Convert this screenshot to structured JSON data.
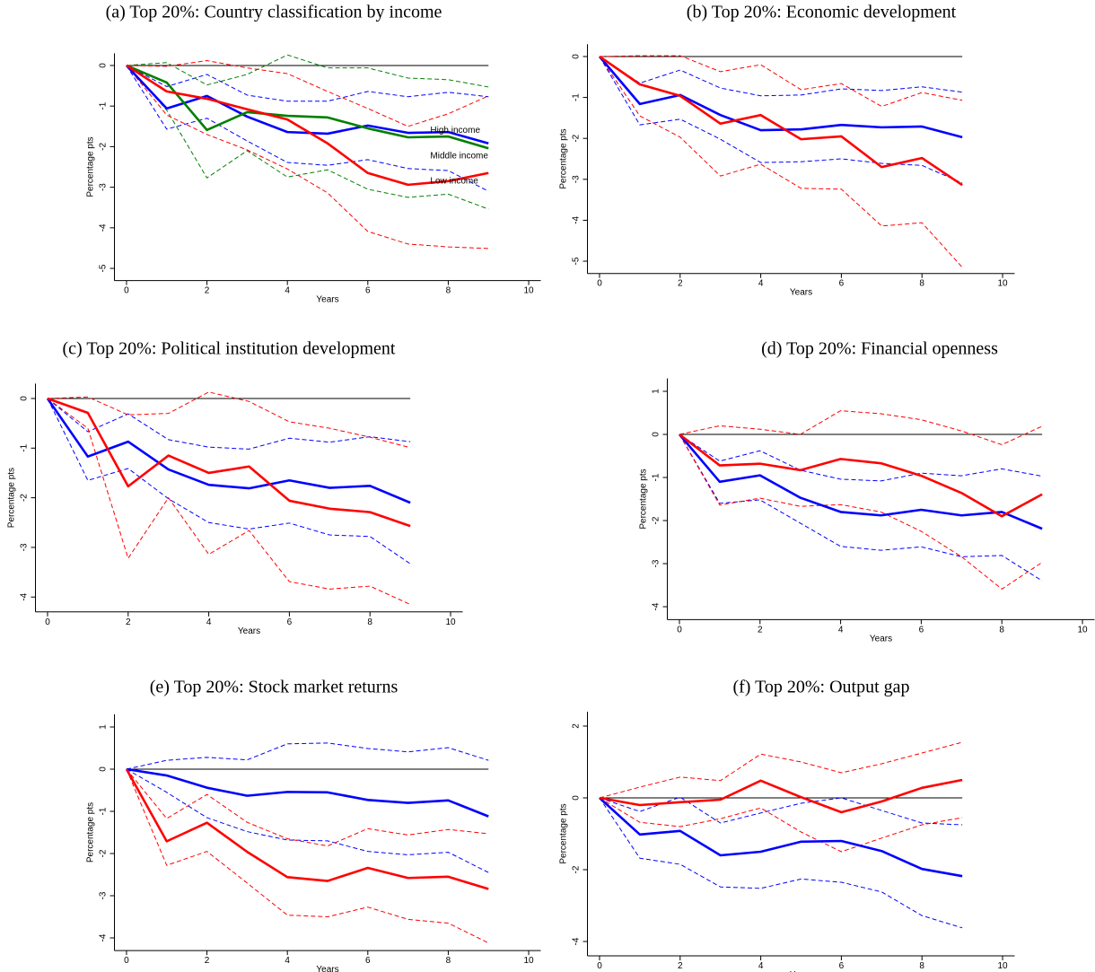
{
  "chart_data": [
    {
      "type": "line",
      "title": "(a) Top 20%: Country classification by income",
      "xlabel": "Years",
      "ylabel": "Percentage pts",
      "x": [
        0,
        1,
        2,
        3,
        4,
        5,
        6,
        7,
        8,
        9
      ],
      "xlim": [
        -0.3,
        10.3
      ],
      "xticks": [
        0,
        2,
        4,
        6,
        8,
        10
      ],
      "ylim": [
        -5.3,
        0.3
      ],
      "yticks": [
        0,
        -1,
        -2,
        -3,
        -4,
        -5
      ],
      "reference_line": 0,
      "series": [
        {
          "color": "#0000ff",
          "style": "dashed",
          "values": [
            0,
            -0.52,
            -0.22,
            -0.73,
            -0.88,
            -0.88,
            -0.64,
            -0.77,
            -0.66,
            -0.77
          ]
        },
        {
          "color": "#0000ff",
          "style": "dashed",
          "values": [
            0,
            -1.57,
            -1.3,
            -1.86,
            -2.39,
            -2.46,
            -2.32,
            -2.54,
            -2.59,
            -3.1
          ]
        },
        {
          "color": "#008000",
          "style": "dashed",
          "values": [
            0,
            0.07,
            -0.48,
            -0.22,
            0.26,
            -0.06,
            -0.06,
            -0.31,
            -0.35,
            -0.53
          ]
        },
        {
          "color": "#008000",
          "style": "dashed",
          "values": [
            0,
            -1.1,
            -2.77,
            -2.1,
            -2.75,
            -2.57,
            -3.05,
            -3.25,
            -3.17,
            -3.54
          ]
        },
        {
          "color": "#ff0000",
          "style": "dashed",
          "values": [
            0,
            -0.02,
            0.12,
            -0.06,
            -0.2,
            -0.64,
            -1.06,
            -1.5,
            -1.19,
            -0.75
          ]
        },
        {
          "color": "#ff0000",
          "style": "dashed",
          "values": [
            0,
            -1.22,
            -1.7,
            -2.08,
            -2.55,
            -3.14,
            -4.09,
            -4.4,
            -4.47,
            -4.51
          ]
        },
        {
          "name": "High income",
          "color": "#0000ff",
          "style": "solid",
          "values": [
            0,
            -1.06,
            -0.75,
            -1.26,
            -1.64,
            -1.68,
            -1.48,
            -1.66,
            -1.64,
            -1.92
          ]
        },
        {
          "name": "Middle income",
          "color": "#008000",
          "style": "solid",
          "values": [
            0,
            -0.42,
            -1.59,
            -1.15,
            -1.24,
            -1.28,
            -1.55,
            -1.77,
            -1.75,
            -2.04
          ]
        },
        {
          "name": "Low income",
          "color": "#ff0000",
          "style": "solid",
          "values": [
            0,
            -0.64,
            -0.82,
            -1.08,
            -1.33,
            -1.92,
            -2.65,
            -2.94,
            -2.85,
            -2.65
          ]
        }
      ]
    },
    {
      "type": "line",
      "title": "(b) Top 20%: Economic development",
      "xlabel": "Years",
      "ylabel": "Percentage pts",
      "x": [
        0,
        1,
        2,
        3,
        4,
        5,
        6,
        7,
        8,
        9
      ],
      "xlim": [
        -0.3,
        10.3
      ],
      "xticks": [
        0,
        2,
        4,
        6,
        8,
        10
      ],
      "ylim": [
        -5.3,
        0.3
      ],
      "yticks": [
        0,
        -1,
        -2,
        -3,
        -4,
        -5
      ],
      "reference_line": 0,
      "series": [
        {
          "color": "#0000ff",
          "style": "dashed",
          "values": [
            0,
            -0.65,
            -0.33,
            -0.77,
            -0.96,
            -0.94,
            -0.79,
            -0.83,
            -0.74,
            -0.87
          ]
        },
        {
          "color": "#0000ff",
          "style": "dashed",
          "values": [
            0,
            -1.67,
            -1.53,
            -2.02,
            -2.59,
            -2.57,
            -2.5,
            -2.61,
            -2.66,
            -3.09
          ]
        },
        {
          "color": "#ff0000",
          "style": "dashed",
          "values": [
            0,
            0.02,
            0.02,
            -0.37,
            -0.2,
            -0.81,
            -0.66,
            -1.22,
            -0.88,
            -1.07
          ]
        },
        {
          "color": "#ff0000",
          "style": "dashed",
          "values": [
            0,
            -1.45,
            -1.97,
            -2.92,
            -2.63,
            -3.22,
            -3.24,
            -4.14,
            -4.06,
            -5.15
          ]
        },
        {
          "color": "#0000ff",
          "style": "solid",
          "values": [
            0,
            -1.16,
            -0.94,
            -1.43,
            -1.8,
            -1.78,
            -1.67,
            -1.73,
            -1.71,
            -1.97
          ]
        },
        {
          "color": "#ff0000",
          "style": "solid",
          "values": [
            0,
            -0.68,
            -0.96,
            -1.64,
            -1.43,
            -2.02,
            -1.95,
            -2.7,
            -2.48,
            -3.14
          ]
        }
      ]
    },
    {
      "type": "line",
      "title": "(c) Top 20%: Political institution development",
      "xlabel": "Years",
      "ylabel": "Percentage pts",
      "x": [
        0,
        1,
        2,
        3,
        4,
        5,
        6,
        7,
        8,
        9
      ],
      "xlim": [
        -0.3,
        10.3
      ],
      "xticks": [
        0,
        2,
        4,
        6,
        8,
        10
      ],
      "ylim": [
        -4.3,
        0.3
      ],
      "yticks": [
        0,
        -1,
        -2,
        -3,
        -4
      ],
      "reference_line": 0,
      "series": [
        {
          "color": "#0000ff",
          "style": "dashed",
          "values": [
            0,
            -0.67,
            -0.31,
            -0.83,
            -0.98,
            -1.02,
            -0.8,
            -0.88,
            -0.77,
            -0.87
          ]
        },
        {
          "color": "#0000ff",
          "style": "dashed",
          "values": [
            0,
            -1.65,
            -1.41,
            -2.02,
            -2.5,
            -2.63,
            -2.51,
            -2.75,
            -2.78,
            -3.33
          ]
        },
        {
          "color": "#ff0000",
          "style": "dashed",
          "values": [
            0,
            0.03,
            -0.33,
            -0.3,
            0.13,
            -0.06,
            -0.47,
            -0.6,
            -0.78,
            -0.99
          ]
        },
        {
          "color": "#ff0000",
          "style": "dashed",
          "values": [
            0,
            -0.6,
            -3.22,
            -2.0,
            -3.14,
            -2.66,
            -3.69,
            -3.84,
            -3.78,
            -4.15
          ]
        },
        {
          "color": "#0000ff",
          "style": "solid",
          "values": [
            0,
            -1.17,
            -0.87,
            -1.43,
            -1.74,
            -1.81,
            -1.65,
            -1.8,
            -1.76,
            -2.1
          ]
        },
        {
          "color": "#ff0000",
          "style": "solid",
          "values": [
            0,
            -0.29,
            -1.77,
            -1.15,
            -1.5,
            -1.37,
            -2.06,
            -2.22,
            -2.29,
            -2.57
          ]
        }
      ]
    },
    {
      "type": "line",
      "title": "(d) Top 20%: Financial openness",
      "xlabel": "Years",
      "ylabel": "Percentage pts",
      "x": [
        0,
        1,
        2,
        3,
        4,
        5,
        6,
        7,
        8,
        9
      ],
      "xlim": [
        -0.3,
        10.3
      ],
      "xticks": [
        0,
        2,
        4,
        6,
        8,
        10
      ],
      "ylim": [
        -4.3,
        1.3
      ],
      "yticks": [
        1,
        0,
        -1,
        -2,
        -3,
        -4
      ],
      "reference_line": 0,
      "series": [
        {
          "color": "#0000ff",
          "style": "dashed",
          "values": [
            0,
            -0.62,
            -0.38,
            -0.83,
            -1.04,
            -1.08,
            -0.9,
            -0.96,
            -0.8,
            -0.97
          ]
        },
        {
          "color": "#0000ff",
          "style": "dashed",
          "values": [
            0,
            -1.6,
            -1.52,
            -2.06,
            -2.6,
            -2.69,
            -2.61,
            -2.84,
            -2.81,
            -3.4
          ]
        },
        {
          "color": "#ff0000",
          "style": "dashed",
          "values": [
            0,
            0.2,
            0.12,
            0.0,
            0.55,
            0.48,
            0.34,
            0.08,
            -0.24,
            0.19
          ]
        },
        {
          "color": "#ff0000",
          "style": "dashed",
          "values": [
            0,
            -1.64,
            -1.48,
            -1.67,
            -1.63,
            -1.8,
            -2.25,
            -2.84,
            -3.59,
            -2.97
          ]
        },
        {
          "color": "#0000ff",
          "style": "solid",
          "values": [
            0,
            -1.1,
            -0.95,
            -1.47,
            -1.8,
            -1.88,
            -1.75,
            -1.88,
            -1.8,
            -2.19
          ]
        },
        {
          "color": "#ff0000",
          "style": "solid",
          "values": [
            0,
            -0.72,
            -0.68,
            -0.83,
            -0.57,
            -0.67,
            -0.96,
            -1.36,
            -1.9,
            -1.39
          ]
        }
      ]
    },
    {
      "type": "line",
      "title": "(e) Top 20%: Stock market returns",
      "xlabel": "Years",
      "ylabel": "Percentage pts",
      "x": [
        0,
        1,
        2,
        3,
        4,
        5,
        6,
        7,
        8,
        9
      ],
      "xlim": [
        -0.3,
        10.3
      ],
      "xticks": [
        0,
        2,
        4,
        6,
        8,
        10
      ],
      "ylim": [
        -4.3,
        1.3
      ],
      "yticks": [
        1,
        0,
        -1,
        -2,
        -3,
        -4
      ],
      "reference_line": 0,
      "series": [
        {
          "color": "#0000ff",
          "style": "dashed",
          "values": [
            0,
            0.21,
            0.28,
            0.22,
            0.6,
            0.62,
            0.49,
            0.41,
            0.51,
            0.21
          ]
        },
        {
          "color": "#0000ff",
          "style": "dashed",
          "values": [
            0,
            -0.55,
            -1.15,
            -1.48,
            -1.68,
            -1.7,
            -1.95,
            -2.03,
            -1.97,
            -2.45
          ]
        },
        {
          "color": "#ff0000",
          "style": "dashed",
          "values": [
            0,
            -1.17,
            -0.6,
            -1.26,
            -1.65,
            -1.82,
            -1.41,
            -1.56,
            -1.43,
            -1.53
          ]
        },
        {
          "color": "#ff0000",
          "style": "dashed",
          "values": [
            0,
            -2.28,
            -1.95,
            -2.7,
            -3.46,
            -3.5,
            -3.27,
            -3.56,
            -3.65,
            -4.12
          ]
        },
        {
          "color": "#0000ff",
          "style": "solid",
          "values": [
            0,
            -0.15,
            -0.44,
            -0.63,
            -0.54,
            -0.55,
            -0.73,
            -0.8,
            -0.74,
            -1.12
          ]
        },
        {
          "color": "#ff0000",
          "style": "solid",
          "values": [
            0,
            -1.71,
            -1.27,
            -1.96,
            -2.56,
            -2.65,
            -2.34,
            -2.58,
            -2.55,
            -2.84
          ]
        }
      ]
    },
    {
      "type": "line",
      "title": "(f) Top 20%: Output gap",
      "xlabel": "Years",
      "ylabel": "Percentage pts",
      "x": [
        0,
        1,
        2,
        3,
        4,
        5,
        6,
        7,
        8,
        9
      ],
      "xlim": [
        -0.3,
        10.3
      ],
      "xticks": [
        0,
        2,
        4,
        6,
        8,
        10
      ],
      "ylim": [
        -4.4,
        2.4
      ],
      "yticks": [
        2,
        0,
        -2,
        -4
      ],
      "reference_line": 0,
      "series": [
        {
          "color": "#0000ff",
          "style": "dashed",
          "values": [
            0,
            -0.38,
            0.02,
            -0.7,
            -0.42,
            -0.15,
            0.0,
            -0.35,
            -0.7,
            -0.75
          ]
        },
        {
          "color": "#0000ff",
          "style": "dashed",
          "values": [
            0,
            -1.68,
            -1.85,
            -2.48,
            -2.52,
            -2.26,
            -2.35,
            -2.62,
            -3.28,
            -3.62
          ]
        },
        {
          "color": "#ff0000",
          "style": "dashed",
          "values": [
            0,
            0.3,
            0.58,
            0.48,
            1.22,
            1.0,
            0.7,
            0.95,
            1.25,
            1.55
          ]
        },
        {
          "color": "#ff0000",
          "style": "dashed",
          "values": [
            0,
            -0.68,
            -0.8,
            -0.58,
            -0.28,
            -0.95,
            -1.5,
            -1.12,
            -0.75,
            -0.55
          ]
        },
        {
          "color": "#0000ff",
          "style": "solid",
          "values": [
            0,
            -1.02,
            -0.92,
            -1.6,
            -1.5,
            -1.22,
            -1.2,
            -1.48,
            -1.98,
            -2.18
          ]
        },
        {
          "color": "#ff0000",
          "style": "solid",
          "values": [
            0,
            -0.2,
            -0.12,
            -0.05,
            0.48,
            0.02,
            -0.4,
            -0.1,
            0.28,
            0.5
          ]
        }
      ]
    }
  ]
}
